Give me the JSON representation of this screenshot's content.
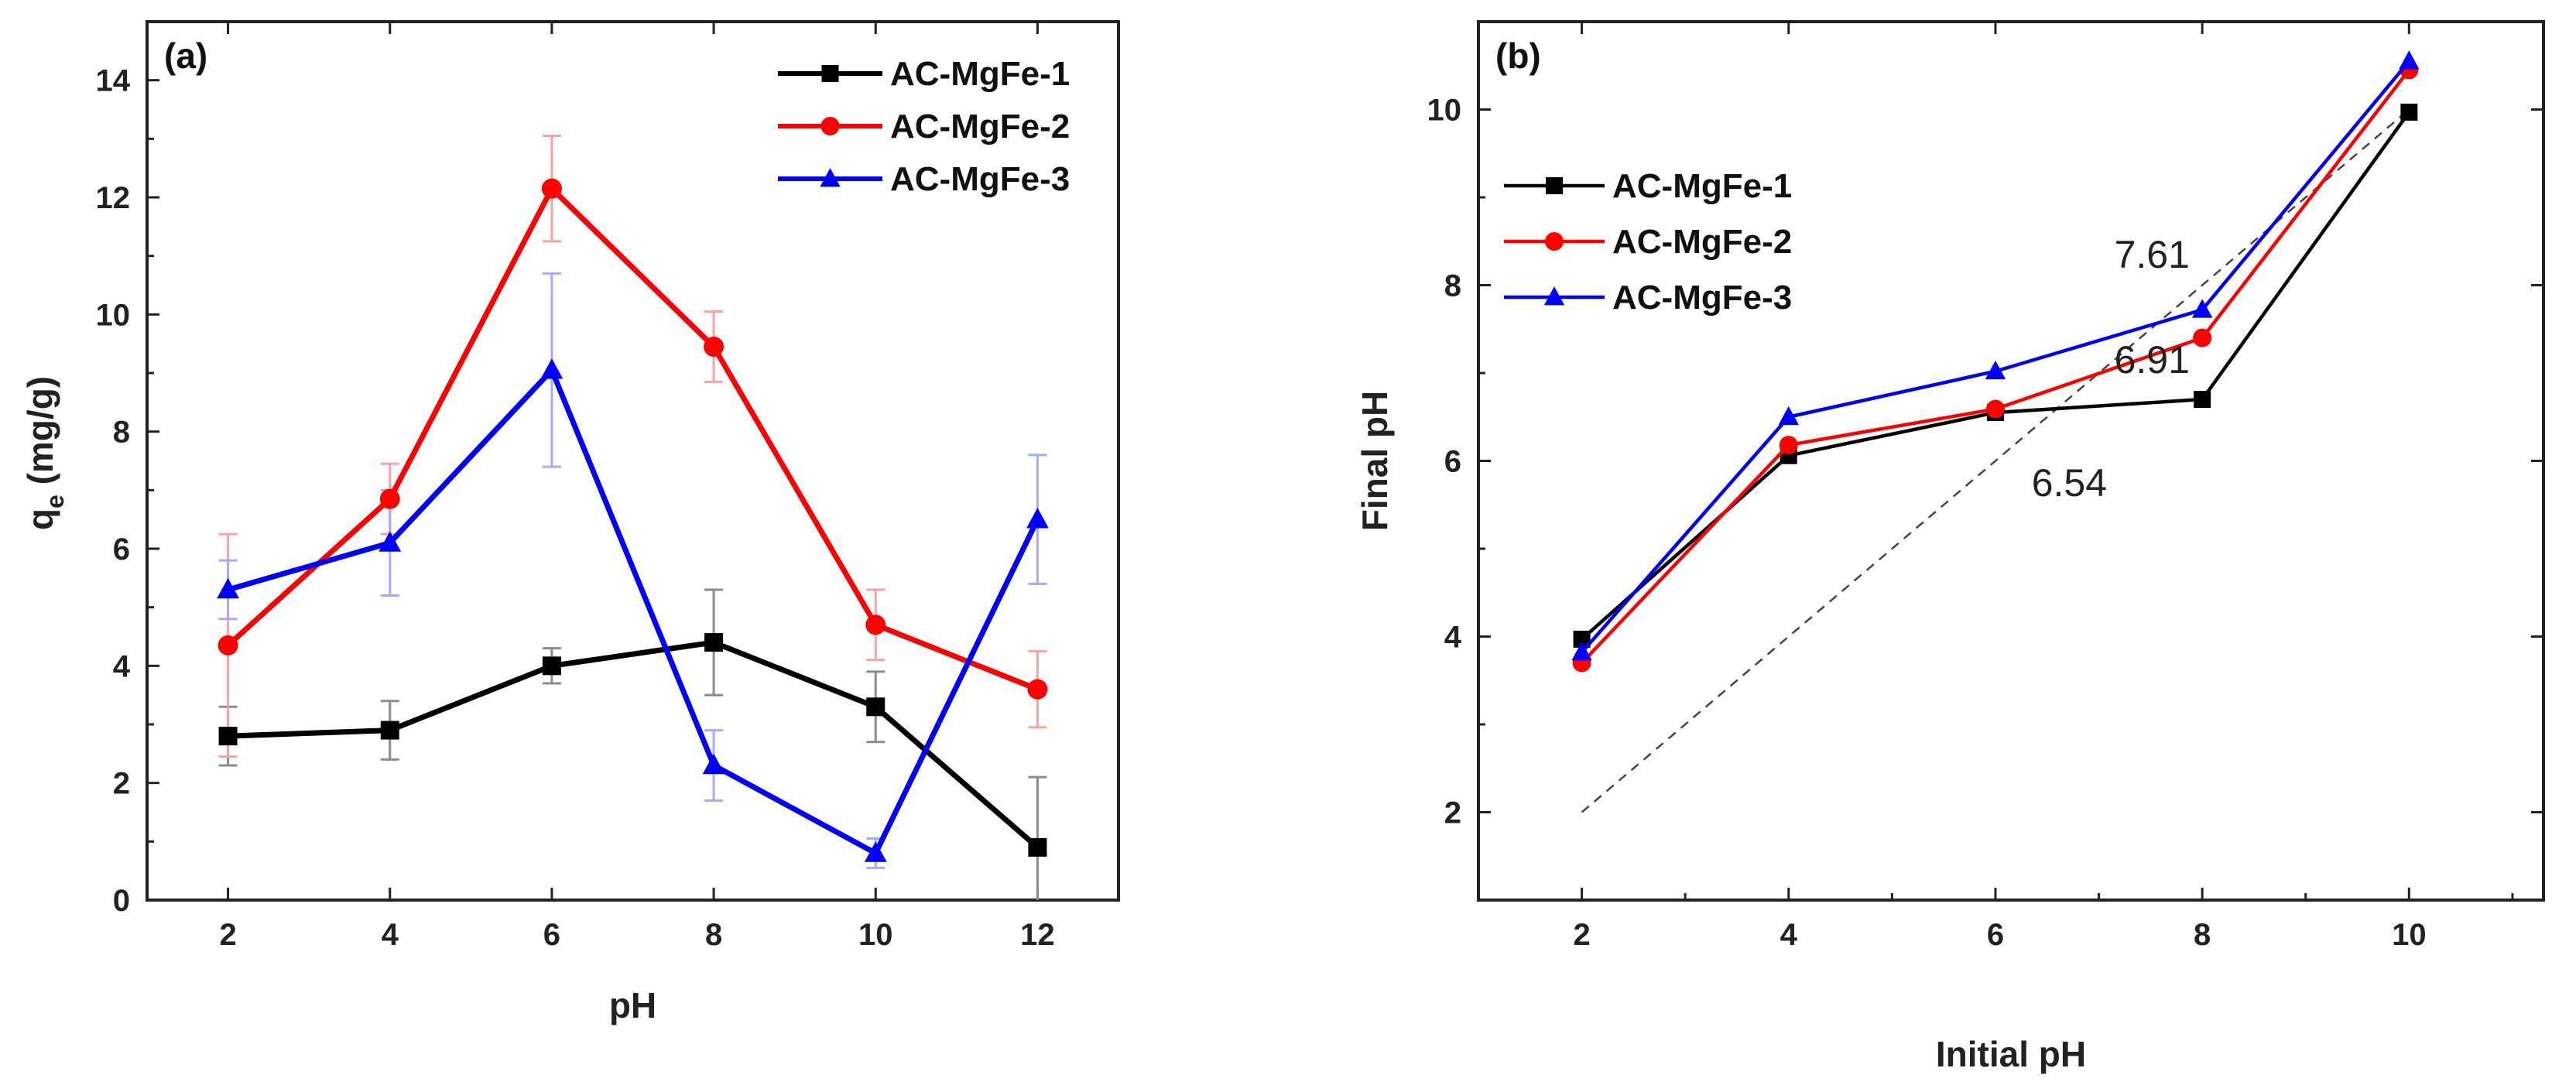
{
  "chart_data": [
    {
      "type": "line",
      "panel_label": "(a)",
      "title": "",
      "xlabel": "pH",
      "ylabel": "q",
      "ylabel_sub": "e",
      "ylabel_units": " (mg/g)",
      "xlim": [
        1,
        13
      ],
      "ylim": [
        0,
        15
      ],
      "xticks": [
        2,
        4,
        6,
        8,
        10,
        12
      ],
      "yticks": [
        0,
        2,
        4,
        6,
        8,
        10,
        12,
        14
      ],
      "legend_position": "top-right",
      "series": [
        {
          "name": "AC-MgFe-1",
          "color": "#000000",
          "marker": "square",
          "x": [
            2,
            4,
            6,
            8,
            10,
            12
          ],
          "values": [
            2.8,
            2.9,
            4.0,
            4.4,
            3.3,
            0.9
          ],
          "errors": [
            0.5,
            0.5,
            0.3,
            0.9,
            0.6,
            1.2
          ]
        },
        {
          "name": "AC-MgFe-2",
          "color": "#ff0000",
          "marker": "circle",
          "x": [
            2,
            4,
            6,
            8,
            10,
            12
          ],
          "values": [
            4.35,
            6.85,
            12.15,
            9.45,
            4.7,
            3.6
          ],
          "errors": [
            1.9,
            0.6,
            0.9,
            0.6,
            0.6,
            0.65
          ]
        },
        {
          "name": "AC-MgFe-3",
          "color": "#0000ff",
          "marker": "triangle",
          "x": [
            2,
            4,
            6,
            8,
            10,
            12
          ],
          "values": [
            5.3,
            6.1,
            9.05,
            2.3,
            0.8,
            6.5
          ],
          "errors": [
            0.5,
            0.9,
            1.65,
            0.6,
            0.25,
            1.1
          ]
        }
      ]
    },
    {
      "type": "line",
      "panel_label": "(b)",
      "title": "",
      "xlabel": "Initial pH",
      "ylabel": "Final pH",
      "xlim": [
        1,
        11.3
      ],
      "ylim": [
        1.0,
        11.0
      ],
      "xticks": [
        2,
        4,
        6,
        8,
        10
      ],
      "yticks": [
        2,
        4,
        6,
        8,
        10
      ],
      "legend_position": "top-left",
      "reference_line": {
        "x": [
          2,
          10
        ],
        "y": [
          2,
          10
        ],
        "style": "dashed"
      },
      "annotations": [
        {
          "text": "7.61",
          "x": 7.15,
          "y": 8.2
        },
        {
          "text": "6.91",
          "x": 7.15,
          "y": 7.0
        },
        {
          "text": "6.54",
          "x": 6.35,
          "y": 5.6
        }
      ],
      "series": [
        {
          "name": "AC-MgFe-1",
          "color": "#000000",
          "marker": "square",
          "x": [
            2,
            4,
            6,
            8,
            10
          ],
          "values": [
            3.97,
            6.06,
            6.55,
            6.7,
            9.97
          ]
        },
        {
          "name": "AC-MgFe-2",
          "color": "#ff0000",
          "marker": "circle",
          "x": [
            2,
            4,
            6,
            8,
            10
          ],
          "values": [
            3.7,
            6.18,
            6.59,
            7.4,
            10.45
          ]
        },
        {
          "name": "AC-MgFe-3",
          "color": "#0000ff",
          "marker": "triangle",
          "x": [
            2,
            4,
            6,
            8,
            10
          ],
          "values": [
            3.82,
            6.5,
            7.02,
            7.72,
            10.55
          ]
        }
      ]
    }
  ]
}
